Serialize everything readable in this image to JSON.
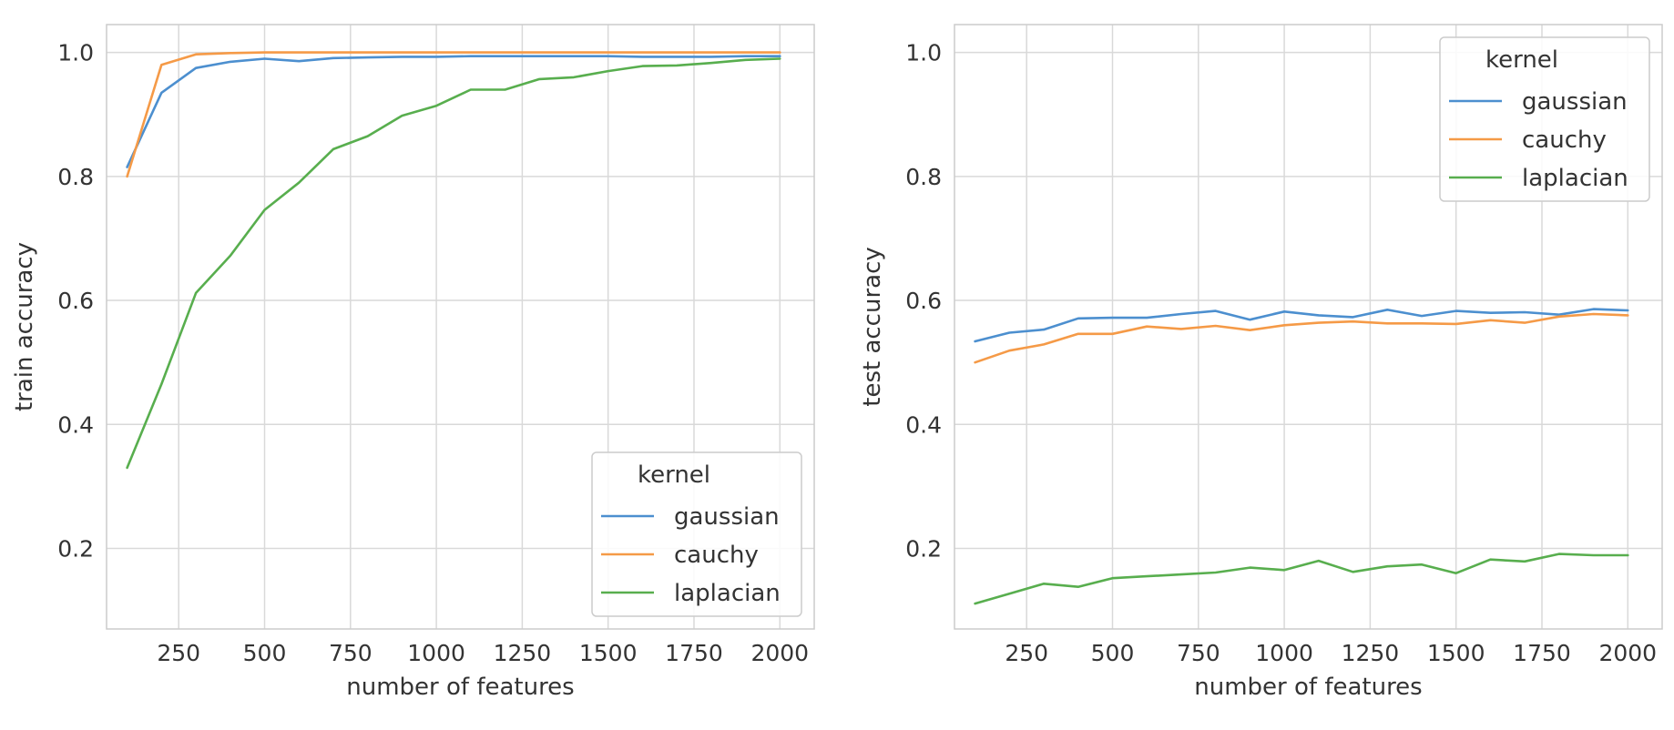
{
  "colors": {
    "gaussian": "#4c8fcf",
    "cauchy": "#f59a47",
    "laplacian": "#58ae4e",
    "grid": "#d9d9d9",
    "frame": "#cccccc",
    "text": "#333333"
  },
  "chart_data": [
    {
      "type": "line",
      "xlabel": "number of features",
      "ylabel": "train accuracy",
      "xlim": [
        40,
        2100
      ],
      "ylim": [
        0.07,
        1.045
      ],
      "xticks": [
        250,
        500,
        750,
        1000,
        1250,
        1500,
        1750,
        2000
      ],
      "yticks": [
        0.2,
        0.4,
        0.6,
        0.8,
        1.0
      ],
      "xtick_labels": [
        "250",
        "500",
        "750",
        "1000",
        "1250",
        "1500",
        "1750",
        "2000"
      ],
      "ytick_labels": [
        "0.2",
        "0.4",
        "0.6",
        "0.8",
        "1.0"
      ],
      "grid": true,
      "legend": {
        "title": "kernel",
        "placement": "lower-right"
      },
      "x": [
        100,
        200,
        300,
        400,
        500,
        600,
        700,
        800,
        900,
        1000,
        1100,
        1200,
        1300,
        1400,
        1500,
        1600,
        1700,
        1800,
        1900,
        2000
      ],
      "series": [
        {
          "name": "gaussian",
          "color_key": "gaussian",
          "values": [
            0.815,
            0.935,
            0.975,
            0.985,
            0.99,
            0.986,
            0.991,
            0.992,
            0.993,
            0.993,
            0.994,
            0.994,
            0.994,
            0.994,
            0.994,
            0.993,
            0.993,
            0.993,
            0.994,
            0.994
          ]
        },
        {
          "name": "cauchy",
          "color_key": "cauchy",
          "values": [
            0.8,
            0.98,
            0.997,
            0.999,
            1.0,
            1.0,
            1.0,
            1.0,
            1.0,
            1.0,
            1.0,
            1.0,
            1.0,
            1.0,
            1.0,
            1.0,
            1.0,
            1.0,
            1.0,
            1.0
          ]
        },
        {
          "name": "laplacian",
          "color_key": "laplacian",
          "values": [
            0.33,
            0.465,
            0.612,
            0.672,
            0.746,
            0.79,
            0.844,
            0.865,
            0.898,
            0.914,
            0.94,
            0.94,
            0.957,
            0.96,
            0.97,
            0.978,
            0.979,
            0.983,
            0.988,
            0.99
          ]
        }
      ]
    },
    {
      "type": "line",
      "xlabel": "number of features",
      "ylabel": "test accuracy",
      "xlim": [
        40,
        2100
      ],
      "ylim": [
        0.07,
        1.045
      ],
      "xticks": [
        250,
        500,
        750,
        1000,
        1250,
        1500,
        1750,
        2000
      ],
      "yticks": [
        0.2,
        0.4,
        0.6,
        0.8,
        1.0
      ],
      "xtick_labels": [
        "250",
        "500",
        "750",
        "1000",
        "1250",
        "1500",
        "1750",
        "2000"
      ],
      "ytick_labels": [
        "0.2",
        "0.4",
        "0.6",
        "0.8",
        "1.0"
      ],
      "grid": true,
      "legend": {
        "title": "kernel",
        "placement": "upper-right"
      },
      "x": [
        100,
        200,
        300,
        400,
        500,
        600,
        700,
        800,
        900,
        1000,
        1100,
        1200,
        1300,
        1400,
        1500,
        1600,
        1700,
        1800,
        1900,
        2000
      ],
      "series": [
        {
          "name": "gaussian",
          "color_key": "gaussian",
          "values": [
            0.534,
            0.548,
            0.553,
            0.571,
            0.572,
            0.572,
            0.578,
            0.583,
            0.569,
            0.582,
            0.576,
            0.573,
            0.585,
            0.575,
            0.583,
            0.58,
            0.581,
            0.577,
            0.586,
            0.584
          ]
        },
        {
          "name": "cauchy",
          "color_key": "cauchy",
          "values": [
            0.5,
            0.519,
            0.529,
            0.546,
            0.546,
            0.558,
            0.554,
            0.559,
            0.552,
            0.56,
            0.564,
            0.566,
            0.563,
            0.563,
            0.562,
            0.568,
            0.564,
            0.574,
            0.578,
            0.576
          ]
        },
        {
          "name": "laplacian",
          "color_key": "laplacian",
          "values": [
            0.111,
            0.127,
            0.143,
            0.138,
            0.152,
            0.155,
            0.158,
            0.161,
            0.169,
            0.165,
            0.18,
            0.162,
            0.171,
            0.174,
            0.16,
            0.182,
            0.179,
            0.191,
            0.189,
            0.189
          ]
        }
      ]
    }
  ]
}
